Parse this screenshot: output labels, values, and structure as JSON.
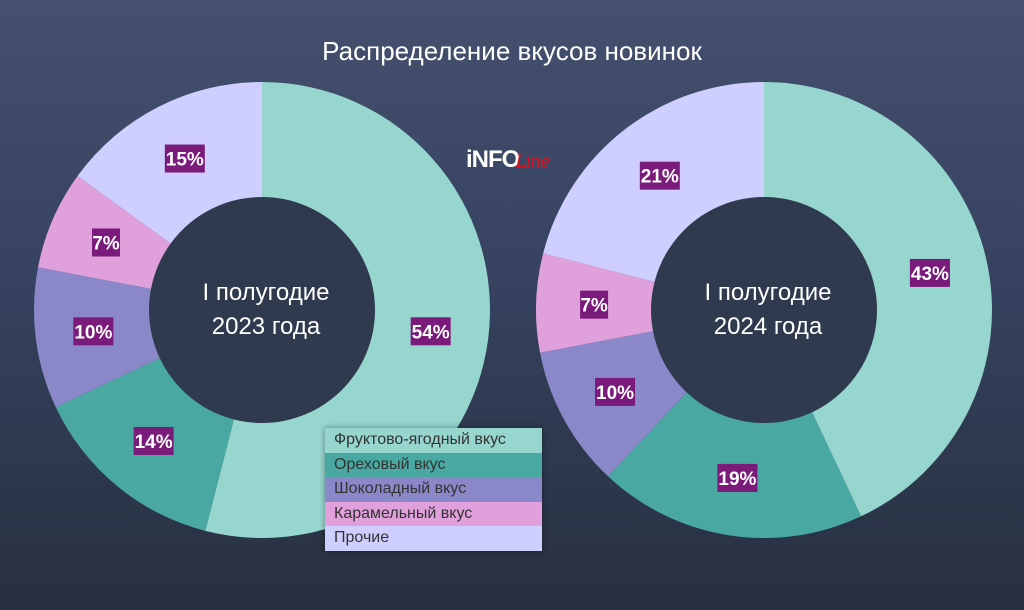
{
  "title": "Распределение вкусов новинок",
  "logo": {
    "main": "iNFO",
    "accent": "Line"
  },
  "chart_data": [
    {
      "type": "pie",
      "center_label": [
        "I полугодие",
        "2023 года"
      ],
      "categories": [
        "Фруктово-ягодный вкус",
        "Ореховый вкус",
        "Шоколадный вкус",
        "Карамельный вкус",
        "Прочие"
      ],
      "values": [
        54,
        14,
        10,
        7,
        15
      ]
    },
    {
      "type": "pie",
      "center_label": [
        "I полугодие",
        "2024 года"
      ],
      "categories": [
        "Фруктово-ягодный вкус",
        "Ореховый вкус",
        "Шоколадный вкус",
        "Карамельный вкус",
        "Прочие"
      ],
      "values": [
        43,
        19,
        10,
        7,
        21
      ]
    }
  ],
  "legend": [
    "Фруктово-ягодный вкус",
    "Ореховый вкус",
    "Шоколадный вкус",
    "Карамельный вкус",
    "Прочие"
  ],
  "colors": [
    "#97d5cf",
    "#4aa8a2",
    "#8a88c8",
    "#e0a0dc",
    "#cfcfff"
  ],
  "label_bg": "#7a1a7a",
  "hole_color": "#2f3a4e"
}
